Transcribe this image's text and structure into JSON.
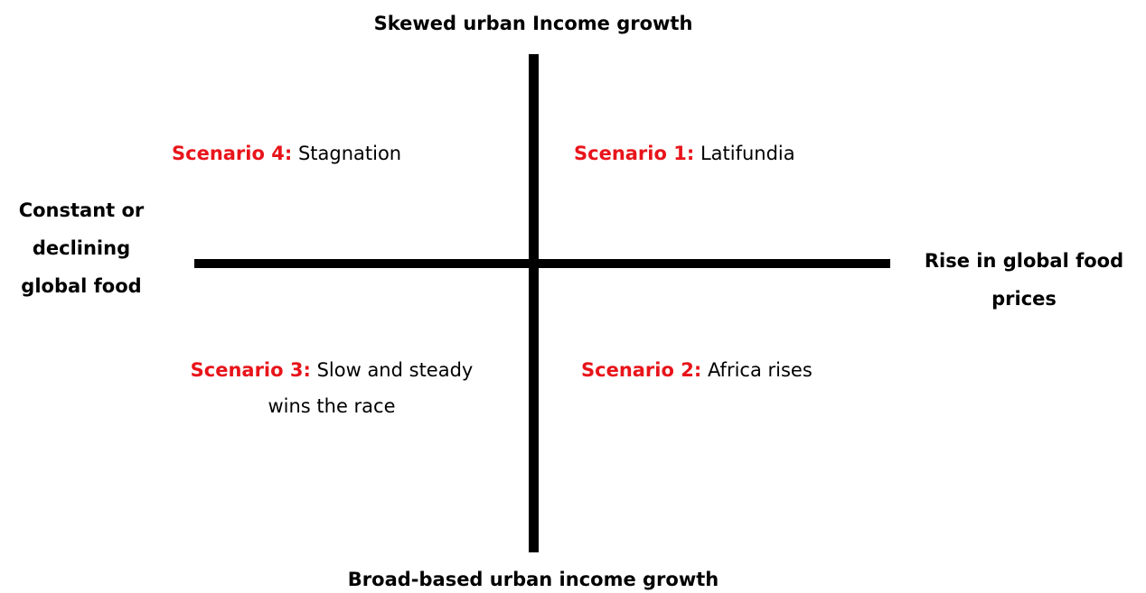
{
  "axes": {
    "top": "Skewed urban Income growth",
    "bottom": "Broad-based urban income growth",
    "left": {
      "lines": [
        "Constant or",
        "declining",
        "global food"
      ]
    },
    "right": {
      "lines": [
        "Rise in global food",
        "prices"
      ]
    }
  },
  "quadrants": [
    {
      "label": "Scenario 4:",
      "name": "Stagnation"
    },
    {
      "label": "Scenario 1:",
      "name": "Latifundia"
    },
    {
      "label": "Scenario 3:",
      "name": "Slow and steady wins the race"
    },
    {
      "label": "Scenario 2:",
      "name": "Africa rises"
    }
  ]
}
